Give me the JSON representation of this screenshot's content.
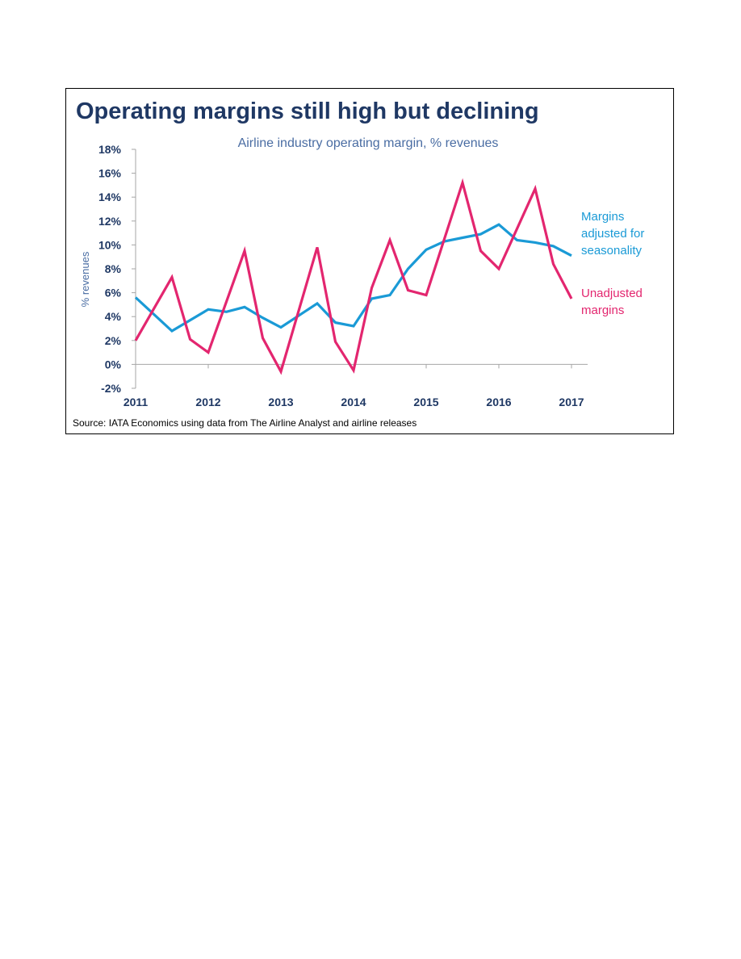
{
  "chart_data": {
    "type": "line",
    "title": "Operating margins still high but declining",
    "subtitle": "Airline industry operating margin, % revenues",
    "ylabel": "% revenues",
    "ylim": [
      -2,
      18
    ],
    "y_ticks": [
      "18%",
      "16%",
      "14%",
      "12%",
      "10%",
      "8%",
      "6%",
      "4%",
      "2%",
      "0%",
      "-2%"
    ],
    "x_ticks": [
      "2011",
      "2012",
      "2013",
      "2014",
      "2015",
      "2016",
      "2017"
    ],
    "x_range": [
      2011,
      2017
    ],
    "source": "Source: IATA Economics using data from The Airline Analyst and airline releases",
    "series": [
      {
        "name": "Margins adjusted for seasonality",
        "label_lines": [
          "Margins",
          "adjusted for",
          "seasonality"
        ],
        "color": "#1a9ad6",
        "x": [
          2011.0,
          2011.5,
          2012.0,
          2012.25,
          2012.5,
          2012.75,
          2013.0,
          2013.5,
          2013.75,
          2014.0,
          2014.25,
          2014.5,
          2014.75,
          2015.0,
          2015.25,
          2015.5,
          2015.75,
          2016.0,
          2016.25,
          2016.5,
          2016.75,
          2017.0
        ],
        "values": [
          5.6,
          2.8,
          4.6,
          4.4,
          4.8,
          3.9,
          3.1,
          5.1,
          3.5,
          3.2,
          5.5,
          5.8,
          8.0,
          9.6,
          10.3,
          10.6,
          10.9,
          11.7,
          10.4,
          10.2,
          9.9,
          9.1
        ]
      },
      {
        "name": "Unadjusted margins",
        "label_lines": [
          "Unadjusted",
          "margins"
        ],
        "color": "#e3266f",
        "x": [
          2011.0,
          2011.5,
          2011.75,
          2012.0,
          2012.5,
          2012.75,
          2013.0,
          2013.5,
          2013.75,
          2014.0,
          2014.25,
          2014.5,
          2014.75,
          2015.0,
          2015.5,
          2015.75,
          2016.0,
          2016.5,
          2016.75,
          2017.0
        ],
        "values": [
          2.0,
          7.3,
          2.1,
          1.0,
          9.5,
          2.2,
          -0.6,
          9.8,
          1.9,
          -0.5,
          6.4,
          10.4,
          6.2,
          5.8,
          15.2,
          9.5,
          8.0,
          14.7,
          8.4,
          5.5
        ]
      }
    ],
    "grid": false,
    "legend": "right (inline labels)"
  }
}
